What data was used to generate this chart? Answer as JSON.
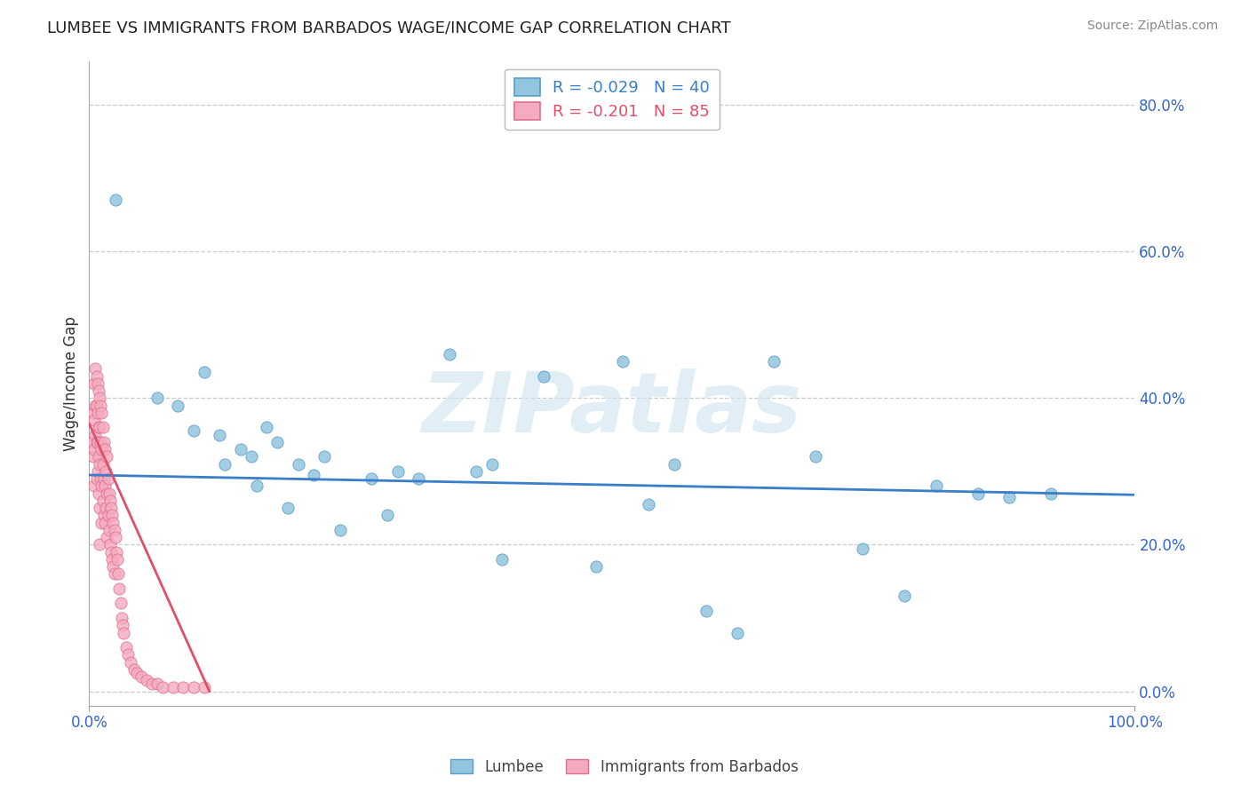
{
  "title": "LUMBEE VS IMMIGRANTS FROM BARBADOS WAGE/INCOME GAP CORRELATION CHART",
  "source": "Source: ZipAtlas.com",
  "ylabel": "Wage/Income Gap",
  "xlim": [
    0.0,
    1.0
  ],
  "ylim": [
    -0.02,
    0.86
  ],
  "yticks": [
    0.0,
    0.2,
    0.4,
    0.6,
    0.8
  ],
  "ytick_labels": [
    "0.0%",
    "20.0%",
    "40.0%",
    "60.0%",
    "80.0%"
  ],
  "xtick_left": "0.0%",
  "xtick_right": "100.0%",
  "legend_labels": [
    "Lumbee",
    "Immigrants from Barbados"
  ],
  "lumbee_fill": "#92C5DE",
  "lumbee_edge": "#5B9EC9",
  "barbados_fill": "#F4ABBE",
  "barbados_edge": "#E07090",
  "lumbee_line_color": "#3A7DC9",
  "barbados_line_color": "#E0506A",
  "R_lumbee": -0.029,
  "N_lumbee": 40,
  "R_barbados": -0.201,
  "N_barbados": 85,
  "watermark": "ZIPatlas",
  "background_color": "#ffffff",
  "grid_color": "#cccccc",
  "lumbee_x": [
    0.025,
    0.065,
    0.085,
    0.1,
    0.11,
    0.125,
    0.13,
    0.145,
    0.155,
    0.16,
    0.17,
    0.18,
    0.19,
    0.2,
    0.215,
    0.225,
    0.24,
    0.27,
    0.285,
    0.295,
    0.315,
    0.345,
    0.37,
    0.385,
    0.395,
    0.435,
    0.485,
    0.51,
    0.535,
    0.56,
    0.59,
    0.62,
    0.655,
    0.695,
    0.74,
    0.78,
    0.81,
    0.85,
    0.88,
    0.92
  ],
  "lumbee_y": [
    0.67,
    0.4,
    0.39,
    0.355,
    0.435,
    0.35,
    0.31,
    0.33,
    0.32,
    0.28,
    0.36,
    0.34,
    0.25,
    0.31,
    0.295,
    0.32,
    0.22,
    0.29,
    0.24,
    0.3,
    0.29,
    0.46,
    0.3,
    0.31,
    0.18,
    0.43,
    0.17,
    0.45,
    0.255,
    0.31,
    0.11,
    0.08,
    0.45,
    0.32,
    0.195,
    0.13,
    0.28,
    0.27,
    0.265,
    0.27
  ],
  "barbados_x": [
    0.003,
    0.004,
    0.004,
    0.005,
    0.005,
    0.005,
    0.005,
    0.006,
    0.006,
    0.006,
    0.007,
    0.007,
    0.007,
    0.007,
    0.008,
    0.008,
    0.008,
    0.008,
    0.009,
    0.009,
    0.009,
    0.009,
    0.01,
    0.01,
    0.01,
    0.01,
    0.01,
    0.011,
    0.011,
    0.011,
    0.012,
    0.012,
    0.012,
    0.012,
    0.013,
    0.013,
    0.013,
    0.014,
    0.014,
    0.014,
    0.015,
    0.015,
    0.015,
    0.016,
    0.016,
    0.017,
    0.017,
    0.017,
    0.018,
    0.018,
    0.019,
    0.019,
    0.02,
    0.02,
    0.021,
    0.021,
    0.022,
    0.022,
    0.023,
    0.023,
    0.024,
    0.024,
    0.025,
    0.026,
    0.027,
    0.028,
    0.029,
    0.03,
    0.031,
    0.032,
    0.033,
    0.035,
    0.037,
    0.04,
    0.043,
    0.046,
    0.05,
    0.055,
    0.06,
    0.065,
    0.07,
    0.08,
    0.09,
    0.1,
    0.11
  ],
  "barbados_y": [
    0.34,
    0.38,
    0.32,
    0.42,
    0.37,
    0.33,
    0.28,
    0.44,
    0.39,
    0.35,
    0.43,
    0.39,
    0.34,
    0.29,
    0.42,
    0.38,
    0.34,
    0.3,
    0.41,
    0.36,
    0.32,
    0.27,
    0.4,
    0.36,
    0.31,
    0.25,
    0.2,
    0.39,
    0.34,
    0.29,
    0.38,
    0.33,
    0.28,
    0.23,
    0.36,
    0.31,
    0.26,
    0.34,
    0.29,
    0.24,
    0.33,
    0.28,
    0.23,
    0.3,
    0.25,
    0.32,
    0.27,
    0.21,
    0.29,
    0.24,
    0.27,
    0.22,
    0.26,
    0.2,
    0.25,
    0.19,
    0.24,
    0.18,
    0.23,
    0.17,
    0.22,
    0.16,
    0.21,
    0.19,
    0.18,
    0.16,
    0.14,
    0.12,
    0.1,
    0.09,
    0.08,
    0.06,
    0.05,
    0.04,
    0.03,
    0.025,
    0.02,
    0.015,
    0.01,
    0.01,
    0.005,
    0.005,
    0.005,
    0.005,
    0.005
  ],
  "lumbee_trend_x": [
    0.0,
    1.0
  ],
  "lumbee_trend_y": [
    0.295,
    0.268
  ],
  "barbados_trend_x": [
    0.0,
    0.115
  ],
  "barbados_trend_y": [
    0.365,
    0.0
  ]
}
